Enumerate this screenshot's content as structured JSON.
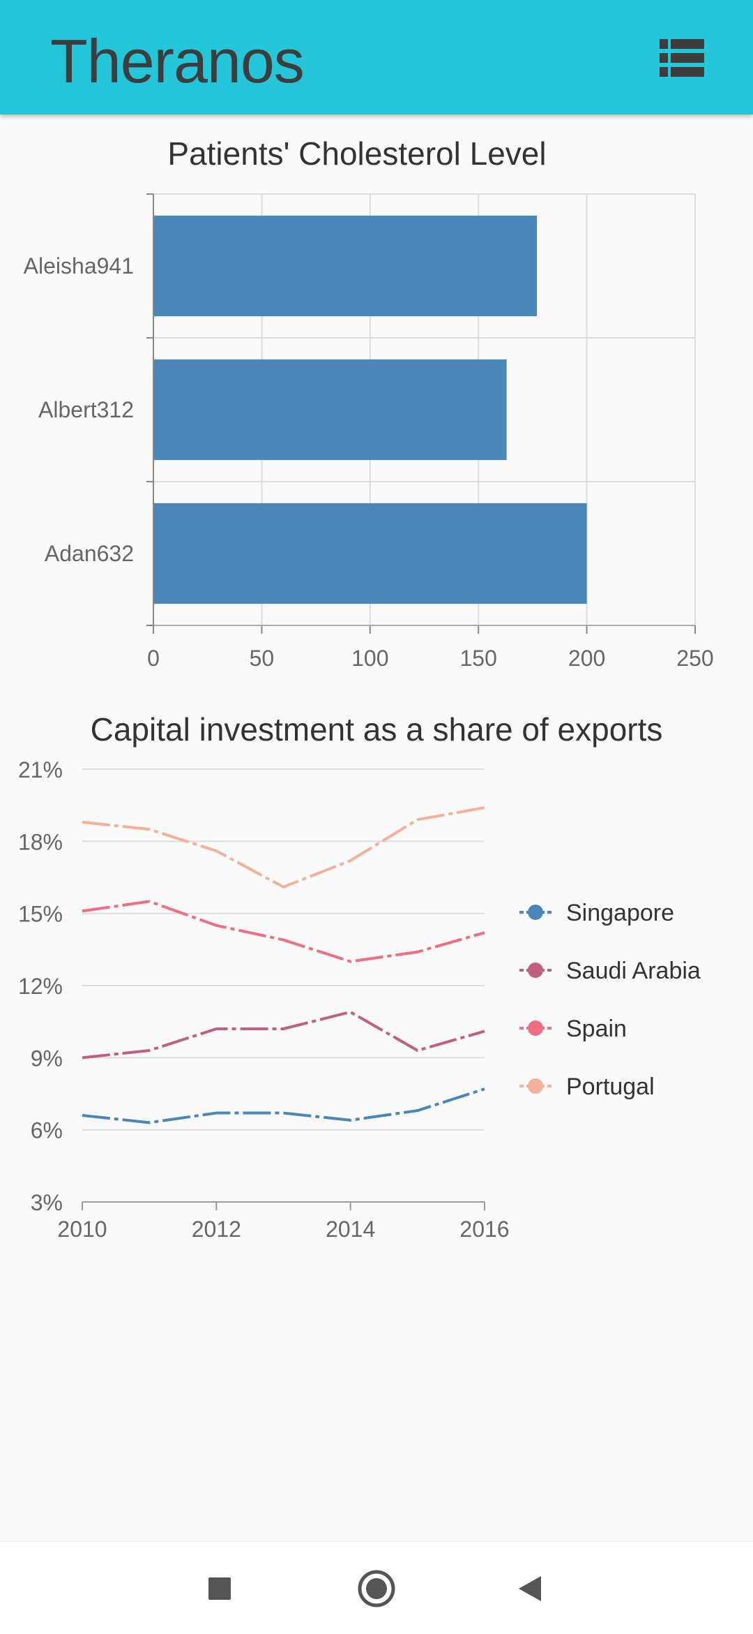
{
  "app": {
    "title": "Theranos",
    "menu_icon": "view-list-icon"
  },
  "colors": {
    "app_bar": "#26c6da",
    "bar_fill": "#4a86b8",
    "singapore": "#4a86b8",
    "saudi_arabia": "#c0607f",
    "spain": "#ef6f82",
    "portugal": "#f5b09a"
  },
  "chart_data": [
    {
      "type": "bar",
      "orientation": "horizontal",
      "title": "Patients' Cholesterol Level",
      "categories": [
        "Aleisha941",
        "Albert312",
        "Adan632"
      ],
      "values": [
        177,
        163,
        200
      ],
      "xlim": [
        0,
        250
      ],
      "xticks": [
        "0",
        "50",
        "100",
        "150",
        "200",
        "250"
      ],
      "grid": true
    },
    {
      "type": "line",
      "title": "Capital investment as a share of exports",
      "x": [
        2010,
        2011,
        2012,
        2013,
        2014,
        2015,
        2016
      ],
      "xticks": [
        "2010",
        "2012",
        "2014",
        "2016"
      ],
      "yticks": [
        "3%",
        "6%",
        "9%",
        "12%",
        "15%",
        "18%",
        "21%"
      ],
      "ylim": [
        3,
        21
      ],
      "grid": true,
      "legend_position": "right",
      "series": [
        {
          "name": "Singapore",
          "color": "#4a86b8",
          "values": [
            6.6,
            6.3,
            6.7,
            6.7,
            6.4,
            6.8,
            7.7
          ]
        },
        {
          "name": "Saudi Arabia",
          "color": "#c0607f",
          "values": [
            9.0,
            9.3,
            10.2,
            10.2,
            10.9,
            9.3,
            10.1
          ]
        },
        {
          "name": "Spain",
          "color": "#ef6f82",
          "values": [
            15.1,
            15.5,
            14.5,
            13.9,
            13.0,
            13.4,
            14.2
          ]
        },
        {
          "name": "Portugal",
          "color": "#f5b09a",
          "values": [
            18.8,
            18.5,
            17.6,
            16.1,
            17.2,
            18.9,
            19.4
          ]
        }
      ]
    }
  ],
  "nav": {
    "recents_icon": "square-recents-icon",
    "home_icon": "circle-home-icon",
    "back_icon": "triangle-back-icon"
  }
}
